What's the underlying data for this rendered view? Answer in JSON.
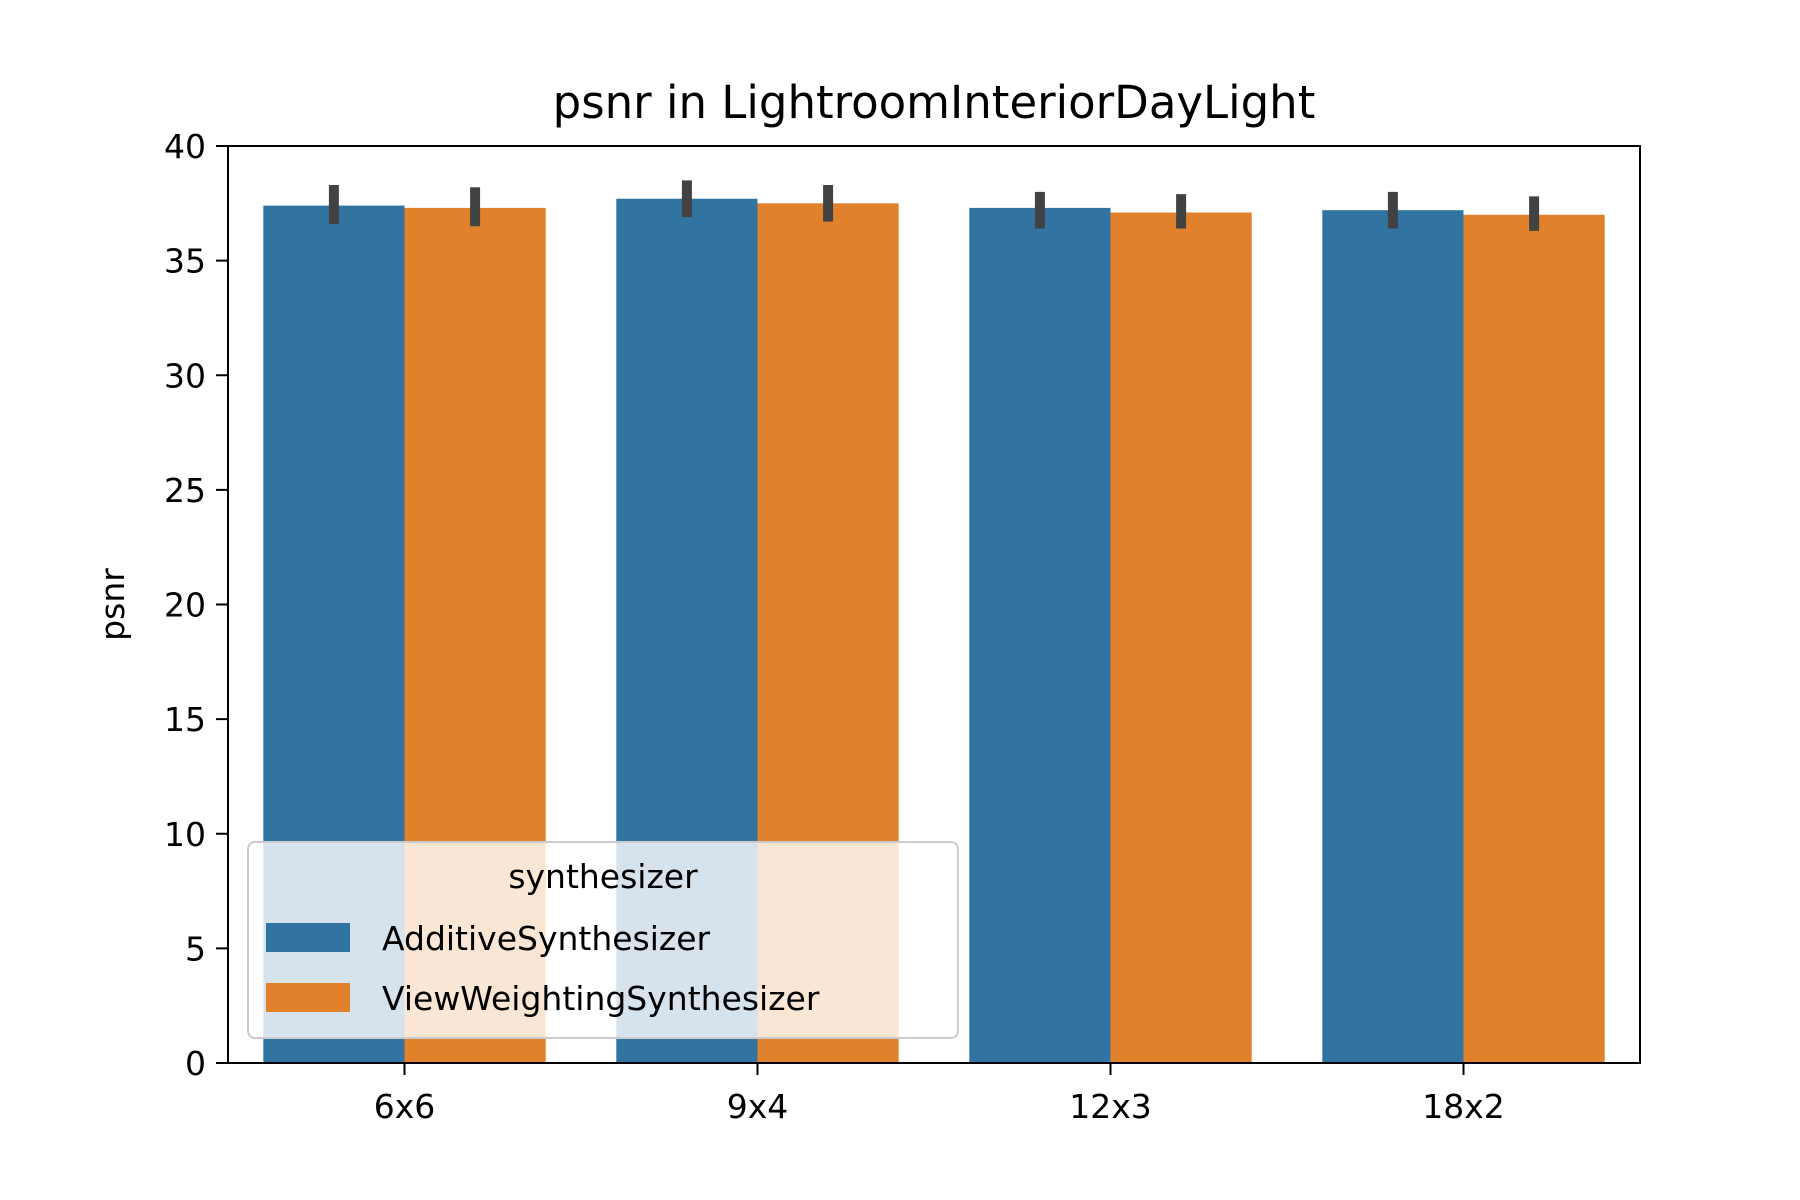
{
  "chart_data": {
    "type": "bar",
    "title": "psnr in LightroomInteriorDayLight",
    "xlabel": "",
    "ylabel": "psnr",
    "categories": [
      "6x6",
      "9x4",
      "12x3",
      "18x2"
    ],
    "ylim": [
      0,
      40
    ],
    "yticks": [
      0,
      5,
      10,
      15,
      20,
      25,
      30,
      35,
      40
    ],
    "grid": false,
    "legend": {
      "title": "synthesizer",
      "placement": "lower-left"
    },
    "series": [
      {
        "name": "AdditiveSynthesizer",
        "color": "#3274a1",
        "values": [
          37.4,
          37.7,
          37.3,
          37.2
        ],
        "err_low": [
          36.6,
          36.9,
          36.4,
          36.4
        ],
        "err_high": [
          38.3,
          38.5,
          38.0,
          38.0
        ]
      },
      {
        "name": "ViewWeightingSynthesizer",
        "color": "#e1812c",
        "values": [
          37.3,
          37.5,
          37.1,
          37.0
        ],
        "err_low": [
          36.5,
          36.7,
          36.4,
          36.3
        ],
        "err_high": [
          38.2,
          38.3,
          37.9,
          37.8
        ]
      }
    ]
  }
}
